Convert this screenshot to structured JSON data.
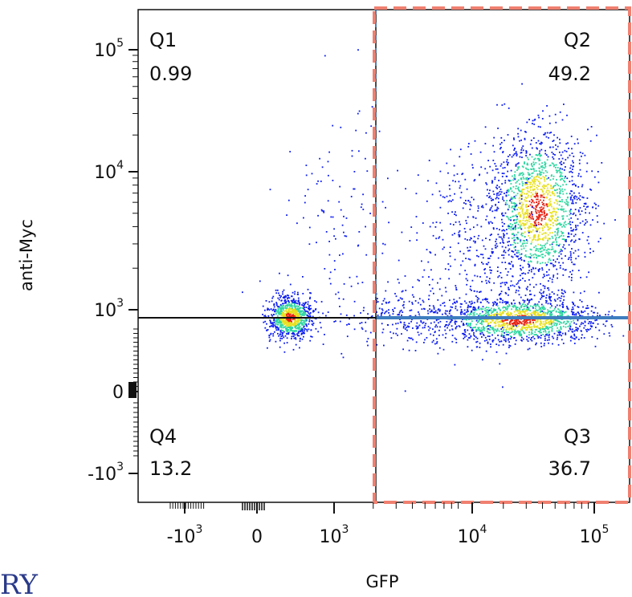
{
  "chart_data": {
    "type": "scatter",
    "xlabel": "GFP",
    "ylabel": "anti-Myc",
    "x_scale": "biexponential",
    "y_scale": "biexponential",
    "x_ticks": [
      {
        "base": "-10",
        "exp": "3"
      },
      {
        "base": "0",
        "exp": ""
      },
      {
        "base": "10",
        "exp": "3"
      },
      {
        "base": "10",
        "exp": "4"
      },
      {
        "base": "10",
        "exp": "5"
      }
    ],
    "y_ticks": [
      {
        "base": "10",
        "exp": "5"
      },
      {
        "base": "10",
        "exp": "4"
      },
      {
        "base": "10",
        "exp": "3"
      },
      {
        "base": "0",
        "exp": ""
      },
      {
        "base": "-10",
        "exp": "3"
      }
    ],
    "gates": {
      "x_threshold": 1000,
      "y_threshold": 800
    },
    "quadrants": [
      {
        "name": "Q1",
        "value": "0.99"
      },
      {
        "name": "Q2",
        "value": "49.2"
      },
      {
        "name": "Q3",
        "value": "36.7"
      },
      {
        "name": "Q4",
        "value": "13.2"
      }
    ],
    "populations": [
      {
        "label": "GFP- Myc-",
        "center_x": 80,
        "center_y": 300
      },
      {
        "label": "GFP+ Myc+",
        "center_x": 30000,
        "center_y": 3500
      },
      {
        "label": "GFP+ Myc-",
        "center_x": 20000,
        "center_y": 300
      }
    ],
    "grid": false
  },
  "colors": {
    "dots": "#0b1cf0",
    "density_mid": "#2ed6a0",
    "density_high": "#e8e020",
    "density_peak": "#e82010",
    "gate_highlight": "#f08070",
    "gate_line": "#3e7dbf"
  },
  "cut_text": "RY"
}
